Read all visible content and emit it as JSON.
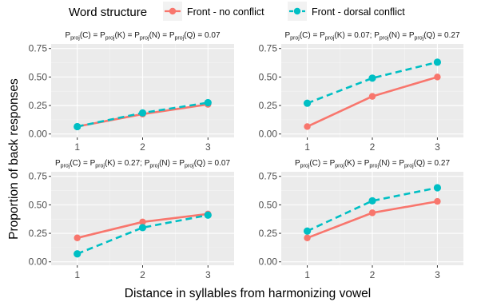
{
  "legend": {
    "title": "Word structure",
    "entries": [
      "Front - no conflict",
      "Front - dorsal conflict"
    ]
  },
  "axes": {
    "xlabel": "Distance in syllables from harmonizing vowel",
    "ylabel": "Proportion of back responses"
  },
  "colors": {
    "series_1": "#f8766d",
    "series_2": "#00bfc4",
    "panel": "#ebebeb",
    "grid": "#ffffff"
  },
  "chart_data": {
    "type": "line",
    "x_ticks": [
      "1",
      "2",
      "3"
    ],
    "y_ticks": [
      "0.00",
      "0.25",
      "0.50",
      "0.75"
    ],
    "xlim": [
      0.6,
      3.4
    ],
    "ylim": [
      -0.03,
      0.79
    ],
    "grid": true,
    "legend_position": "top",
    "panels": [
      {
        "title_parts": [
          [
            "P",
            "n"
          ],
          [
            "proj",
            "s"
          ],
          [
            "(C) = ",
            "n"
          ],
          [
            "P",
            "n"
          ],
          [
            "proj",
            "s"
          ],
          [
            "(K) = ",
            "n"
          ],
          [
            "P",
            "n"
          ],
          [
            "proj",
            "s"
          ],
          [
            "(N) = ",
            "n"
          ],
          [
            "P",
            "n"
          ],
          [
            "proj",
            "s"
          ],
          [
            "(Q) = 0.07",
            "n"
          ]
        ],
        "x": [
          1,
          2,
          3
        ],
        "series": [
          {
            "name": "Front - no conflict",
            "values": [
              0.065,
              0.175,
              0.26
            ]
          },
          {
            "name": "Front - dorsal conflict",
            "values": [
              0.065,
              0.185,
              0.275
            ]
          }
        ]
      },
      {
        "title_parts": [
          [
            "P",
            "n"
          ],
          [
            "proj",
            "s"
          ],
          [
            "(C) = ",
            "n"
          ],
          [
            "P",
            "n"
          ],
          [
            "proj",
            "s"
          ],
          [
            "(K) = 0.07; ",
            "n"
          ],
          [
            "P",
            "n"
          ],
          [
            "proj",
            "s"
          ],
          [
            "(N) = ",
            "n"
          ],
          [
            "P",
            "n"
          ],
          [
            "proj",
            "s"
          ],
          [
            "(Q) = 0.27",
            "n"
          ]
        ],
        "x": [
          1,
          2,
          3
        ],
        "series": [
          {
            "name": "Front - no conflict",
            "values": [
              0.065,
              0.33,
              0.5
            ]
          },
          {
            "name": "Front - dorsal conflict",
            "values": [
              0.27,
              0.49,
              0.63
            ]
          }
        ]
      },
      {
        "title_parts": [
          [
            "P",
            "n"
          ],
          [
            "proj",
            "s"
          ],
          [
            "(C) = ",
            "n"
          ],
          [
            "P",
            "n"
          ],
          [
            "proj",
            "s"
          ],
          [
            "(K) = 0.27; ",
            "n"
          ],
          [
            "P",
            "n"
          ],
          [
            "proj",
            "s"
          ],
          [
            "(N) = ",
            "n"
          ],
          [
            "P",
            "n"
          ],
          [
            "proj",
            "s"
          ],
          [
            "(Q) = 0.07",
            "n"
          ]
        ],
        "x": [
          1,
          2,
          3
        ],
        "series": [
          {
            "name": "Front - no conflict",
            "values": [
              0.21,
              0.35,
              0.42
            ]
          },
          {
            "name": "Front - dorsal conflict",
            "values": [
              0.07,
              0.3,
              0.41
            ]
          }
        ]
      },
      {
        "title_parts": [
          [
            "P",
            "n"
          ],
          [
            "proj",
            "s"
          ],
          [
            "(C) = ",
            "n"
          ],
          [
            "P",
            "n"
          ],
          [
            "proj",
            "s"
          ],
          [
            "(K) = ",
            "n"
          ],
          [
            "P",
            "n"
          ],
          [
            "proj",
            "s"
          ],
          [
            "(N) = ",
            "n"
          ],
          [
            "P",
            "n"
          ],
          [
            "proj",
            "s"
          ],
          [
            "(Q) = 0.27",
            "n"
          ]
        ],
        "x": [
          1,
          2,
          3
        ],
        "series": [
          {
            "name": "Front - no conflict",
            "values": [
              0.21,
              0.43,
              0.53
            ]
          },
          {
            "name": "Front - dorsal conflict",
            "values": [
              0.27,
              0.535,
              0.65
            ]
          }
        ]
      }
    ]
  }
}
